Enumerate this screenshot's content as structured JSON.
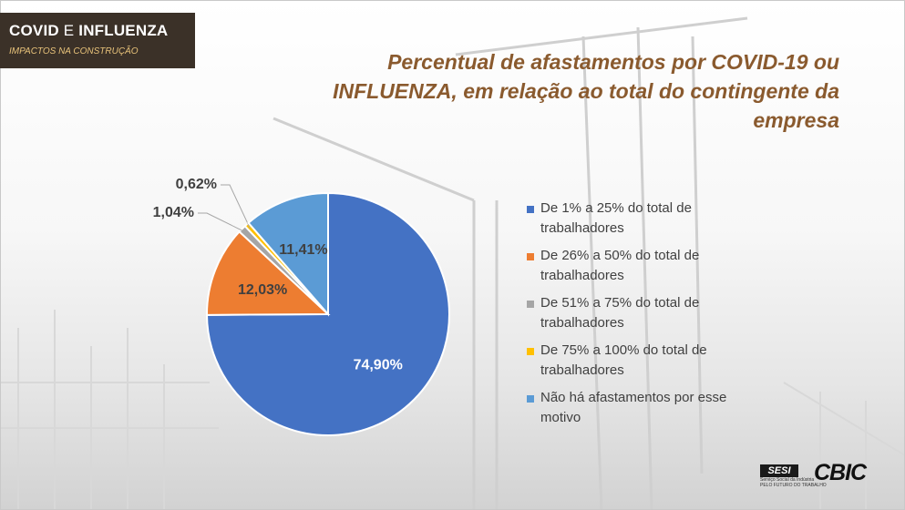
{
  "header": {
    "tag_word1": "COVID",
    "tag_word2": "E",
    "tag_word3": "INFLUENZA",
    "tag_subtitle": "IMPACTOS NA CONSTRUÇÃO"
  },
  "chart_data": {
    "type": "pie",
    "title": "Percentual de afastamentos por COVID-19 ou INFLUENZA, em relação ao total do contingente da empresa",
    "slices": [
      {
        "name": "De 1% a 25% do total de trabalhadores",
        "value": 74.9,
        "label": "74,90%",
        "color": "#4472C4"
      },
      {
        "name": "De 26% a 50% do total de trabalhadores",
        "value": 12.03,
        "label": "12,03%",
        "color": "#ED7D31"
      },
      {
        "name": "De 51% a 75% do total de trabalhadores",
        "value": 1.04,
        "label": "1,04%",
        "color": "#A5A5A5"
      },
      {
        "name": "De 75% a 100% do total de trabalhadores",
        "value": 0.62,
        "label": "0,62%",
        "color": "#FFC000"
      },
      {
        "name": "Não há afastamentos por esse motivo",
        "value": 11.41,
        "label": "11,41%",
        "color": "#5B9BD5"
      }
    ],
    "legend_position": "right"
  },
  "logos": {
    "sesi_mark": "SESI",
    "sesi_line1": "Serviço Social da Indústria",
    "sesi_line2": "PELO FUTURO DO TRABALHO",
    "cbic": "CBIC"
  }
}
